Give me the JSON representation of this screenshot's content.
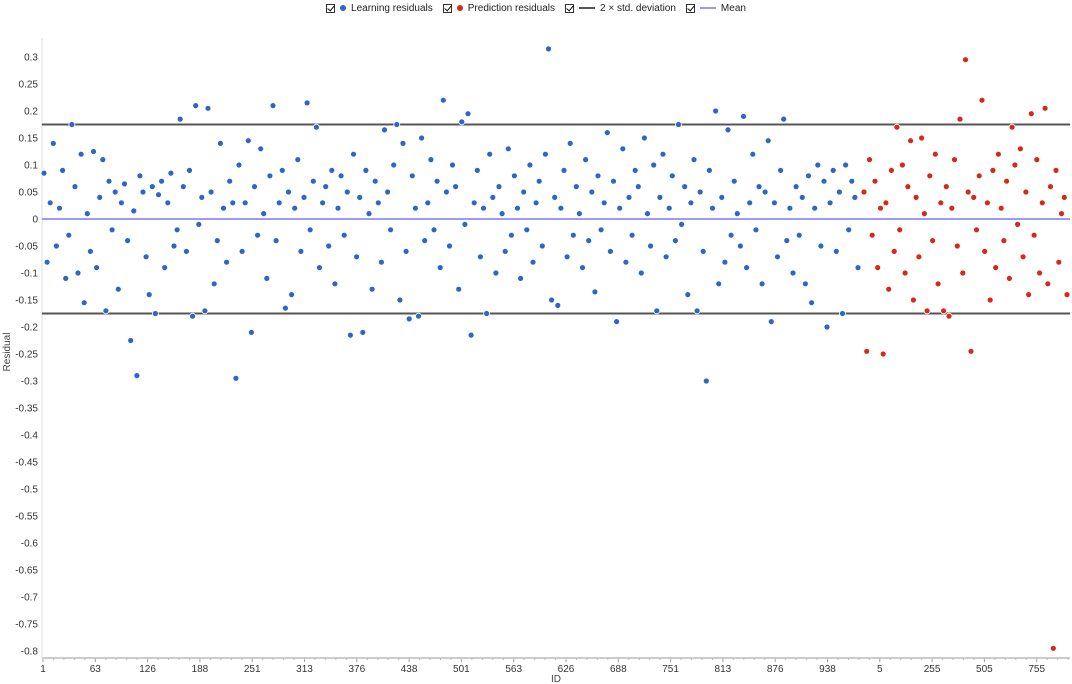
{
  "chart_data": {
    "type": "scatter",
    "xlabel": "ID",
    "ylabel": "Residual",
    "ylim": [
      -0.8,
      0.3
    ],
    "yticks": [
      "0.3",
      "0.25",
      "0.2",
      "0.15",
      "0.1",
      "0.05",
      "0",
      "-0.05",
      "-0.1",
      "-0.15",
      "-0.2",
      "-0.25",
      "-0.3",
      "-0.35",
      "-0.4",
      "-0.45",
      "-0.5",
      "-0.55",
      "-0.6",
      "-0.65",
      "-0.7",
      "-0.75",
      "-0.8"
    ],
    "xticks": [
      "1",
      "63",
      "126",
      "188",
      "251",
      "313",
      "376",
      "438",
      "501",
      "563",
      "626",
      "688",
      "751",
      "813",
      "876",
      "938",
      "5",
      "255",
      "505",
      "755"
    ],
    "grid": false,
    "legend_position": "top",
    "legend": [
      {
        "name": "Learning residuals",
        "kind": "dot",
        "color": "#2e66c8",
        "checked": true
      },
      {
        "name": "Prediction residuals",
        "kind": "dot",
        "color": "#d42a1a",
        "checked": true
      },
      {
        "name": "2 × std. deviation",
        "kind": "line",
        "color": "#555555",
        "checked": true
      },
      {
        "name": "Mean",
        "kind": "line",
        "color": "#9999ff",
        "checked": true
      }
    ],
    "series": [
      {
        "name": "Learning residuals",
        "color": "#2e66c8",
        "x_range": [
          1,
          1000
        ],
        "values": [
          0.085,
          -0.08,
          0.03,
          0.14,
          -0.05,
          0.02,
          0.09,
          -0.11,
          -0.03,
          0.175,
          0.06,
          -0.1,
          0.12,
          -0.155,
          0.01,
          -0.06,
          0.125,
          -0.09,
          0.04,
          0.11,
          -0.17,
          0.07,
          -0.02,
          0.05,
          -0.13,
          0.03,
          0.065,
          -0.04,
          -0.225,
          0.015,
          -0.29,
          0.08,
          0.05,
          -0.07,
          -0.14,
          0.06,
          -0.175,
          0.045,
          0.07,
          -0.09,
          0.03,
          0.085,
          -0.05,
          -0.02,
          0.185,
          0.06,
          -0.06,
          0.09,
          -0.18,
          0.21,
          -0.01,
          0.04,
          -0.17,
          0.205,
          0.05,
          -0.12,
          -0.04,
          0.14,
          0.02,
          -0.08,
          0.07,
          0.03,
          -0.295,
          0.1,
          -0.06,
          0.03,
          0.145,
          -0.21,
          0.06,
          -0.03,
          0.13,
          0.01,
          -0.11,
          0.08,
          0.21,
          -0.04,
          0.03,
          0.09,
          -0.165,
          0.05,
          -0.14,
          0.02,
          0.11,
          -0.06,
          0.04,
          0.215,
          -0.02,
          0.07,
          0.17,
          -0.09,
          0.03,
          0.06,
          -0.05,
          0.09,
          -0.12,
          0.02,
          0.08,
          -0.03,
          0.05,
          -0.215,
          0.12,
          -0.07,
          0.04,
          -0.21,
          0.09,
          0.01,
          -0.13,
          0.07,
          0.03,
          -0.08,
          0.165,
          0.05,
          -0.02,
          0.1,
          0.175,
          -0.15,
          0.14,
          -0.06,
          -0.185,
          0.08,
          0.02,
          -0.18,
          0.15,
          -0.04,
          0.03,
          0.11,
          -0.02,
          0.07,
          -0.09,
          0.22,
          0.05,
          -0.05,
          0.1,
          0.06,
          -0.13,
          0.18,
          -0.01,
          0.195,
          -0.215,
          0.03,
          0.09,
          -0.07,
          0.02,
          -0.175,
          0.12,
          0.04,
          -0.1,
          0.06,
          0.01,
          -0.06,
          0.13,
          -0.03,
          0.08,
          0.02,
          -0.11,
          0.05,
          -0.02,
          0.1,
          -0.08,
          0.03,
          0.07,
          -0.05,
          0.12,
          0.315,
          -0.15,
          0.04,
          -0.16,
          0.02,
          0.09,
          -0.07,
          0.14,
          -0.03,
          0.06,
          0.01,
          -0.09,
          0.11,
          -0.04,
          0.05,
          -0.135,
          0.08,
          -0.02,
          0.03,
          0.16,
          -0.06,
          0.07,
          -0.19,
          0.02,
          0.13,
          -0.08,
          0.04,
          -0.03,
          0.09,
          0.06,
          -0.1,
          0.15,
          0.01,
          -0.05,
          0.1,
          -0.17,
          0.04,
          0.12,
          -0.07,
          0.02,
          0.08,
          -0.04,
          0.175,
          -0.01,
          0.06,
          -0.14,
          0.03,
          0.11,
          -0.17,
          0.05,
          -0.06,
          -0.3,
          0.09,
          0.02,
          0.2,
          -0.12,
          0.04,
          -0.08,
          0.165,
          -0.03,
          0.07,
          0.01,
          -0.05,
          0.19,
          -0.09,
          0.03,
          0.12,
          -0.02,
          0.06,
          -0.12,
          0.05,
          0.145,
          -0.19,
          0.03,
          -0.07,
          0.09,
          0.185,
          -0.04,
          0.02,
          -0.1,
          0.06,
          -0.03,
          0.04,
          -0.12,
          0.08,
          -0.155,
          0.02,
          0.1,
          -0.05,
          0.07,
          -0.2,
          0.03,
          0.09,
          -0.06,
          0.05,
          -0.175,
          0.1,
          -0.02,
          0.07,
          0.04,
          -0.09
        ]
      },
      {
        "name": "Prediction residuals",
        "color": "#d42a1a",
        "x_range": [
          1,
          1000
        ],
        "values": [
          0.05,
          -0.245,
          0.11,
          -0.03,
          0.07,
          -0.09,
          0.02,
          -0.25,
          0.03,
          -0.13,
          0.09,
          -0.06,
          0.17,
          -0.02,
          0.1,
          -0.1,
          0.06,
          0.145,
          -0.15,
          0.04,
          -0.07,
          0.15,
          0.01,
          -0.17,
          0.08,
          -0.04,
          0.12,
          -0.12,
          0.03,
          -0.17,
          0.06,
          -0.18,
          0.02,
          0.11,
          -0.05,
          0.185,
          -0.1,
          0.295,
          0.05,
          -0.245,
          0.04,
          -0.02,
          0.08,
          0.22,
          -0.06,
          0.03,
          -0.15,
          0.09,
          -0.09,
          0.12,
          0.02,
          -0.04,
          0.07,
          -0.11,
          0.17,
          0.1,
          -0.01,
          0.13,
          -0.07,
          0.05,
          -0.14,
          0.195,
          -0.03,
          0.11,
          -0.1,
          0.03,
          0.205,
          -0.12,
          0.06,
          -0.795,
          0.09,
          -0.08,
          0.01,
          0.04,
          -0.14
        ]
      }
    ],
    "mean": 0,
    "std_band": [
      0.175,
      -0.175
    ]
  }
}
